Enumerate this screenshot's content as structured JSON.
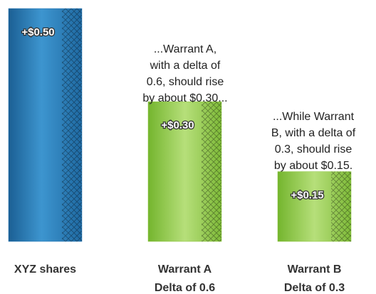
{
  "chart_data": {
    "type": "bar",
    "categories": [
      "XYZ shares",
      "Warrant A",
      "Warrant B"
    ],
    "sublabels": [
      null,
      "Delta of 0.6",
      "Delta of 0.3"
    ],
    "values": [
      0.5,
      0.3,
      0.15
    ],
    "value_labels": [
      "+$0.50",
      "+$0.30",
      "+$0.15"
    ],
    "colors": [
      "#2a7ab8",
      "#8cc63f",
      "#8cc63f"
    ],
    "annotations": [
      [
        "...Warrant A,",
        "with a delta of",
        "0.6, should rise",
        "by about $0.30..."
      ],
      [
        "...While Warrant",
        "B, with a delta of",
        "0.3, should rise",
        "by about $0.15."
      ]
    ]
  }
}
